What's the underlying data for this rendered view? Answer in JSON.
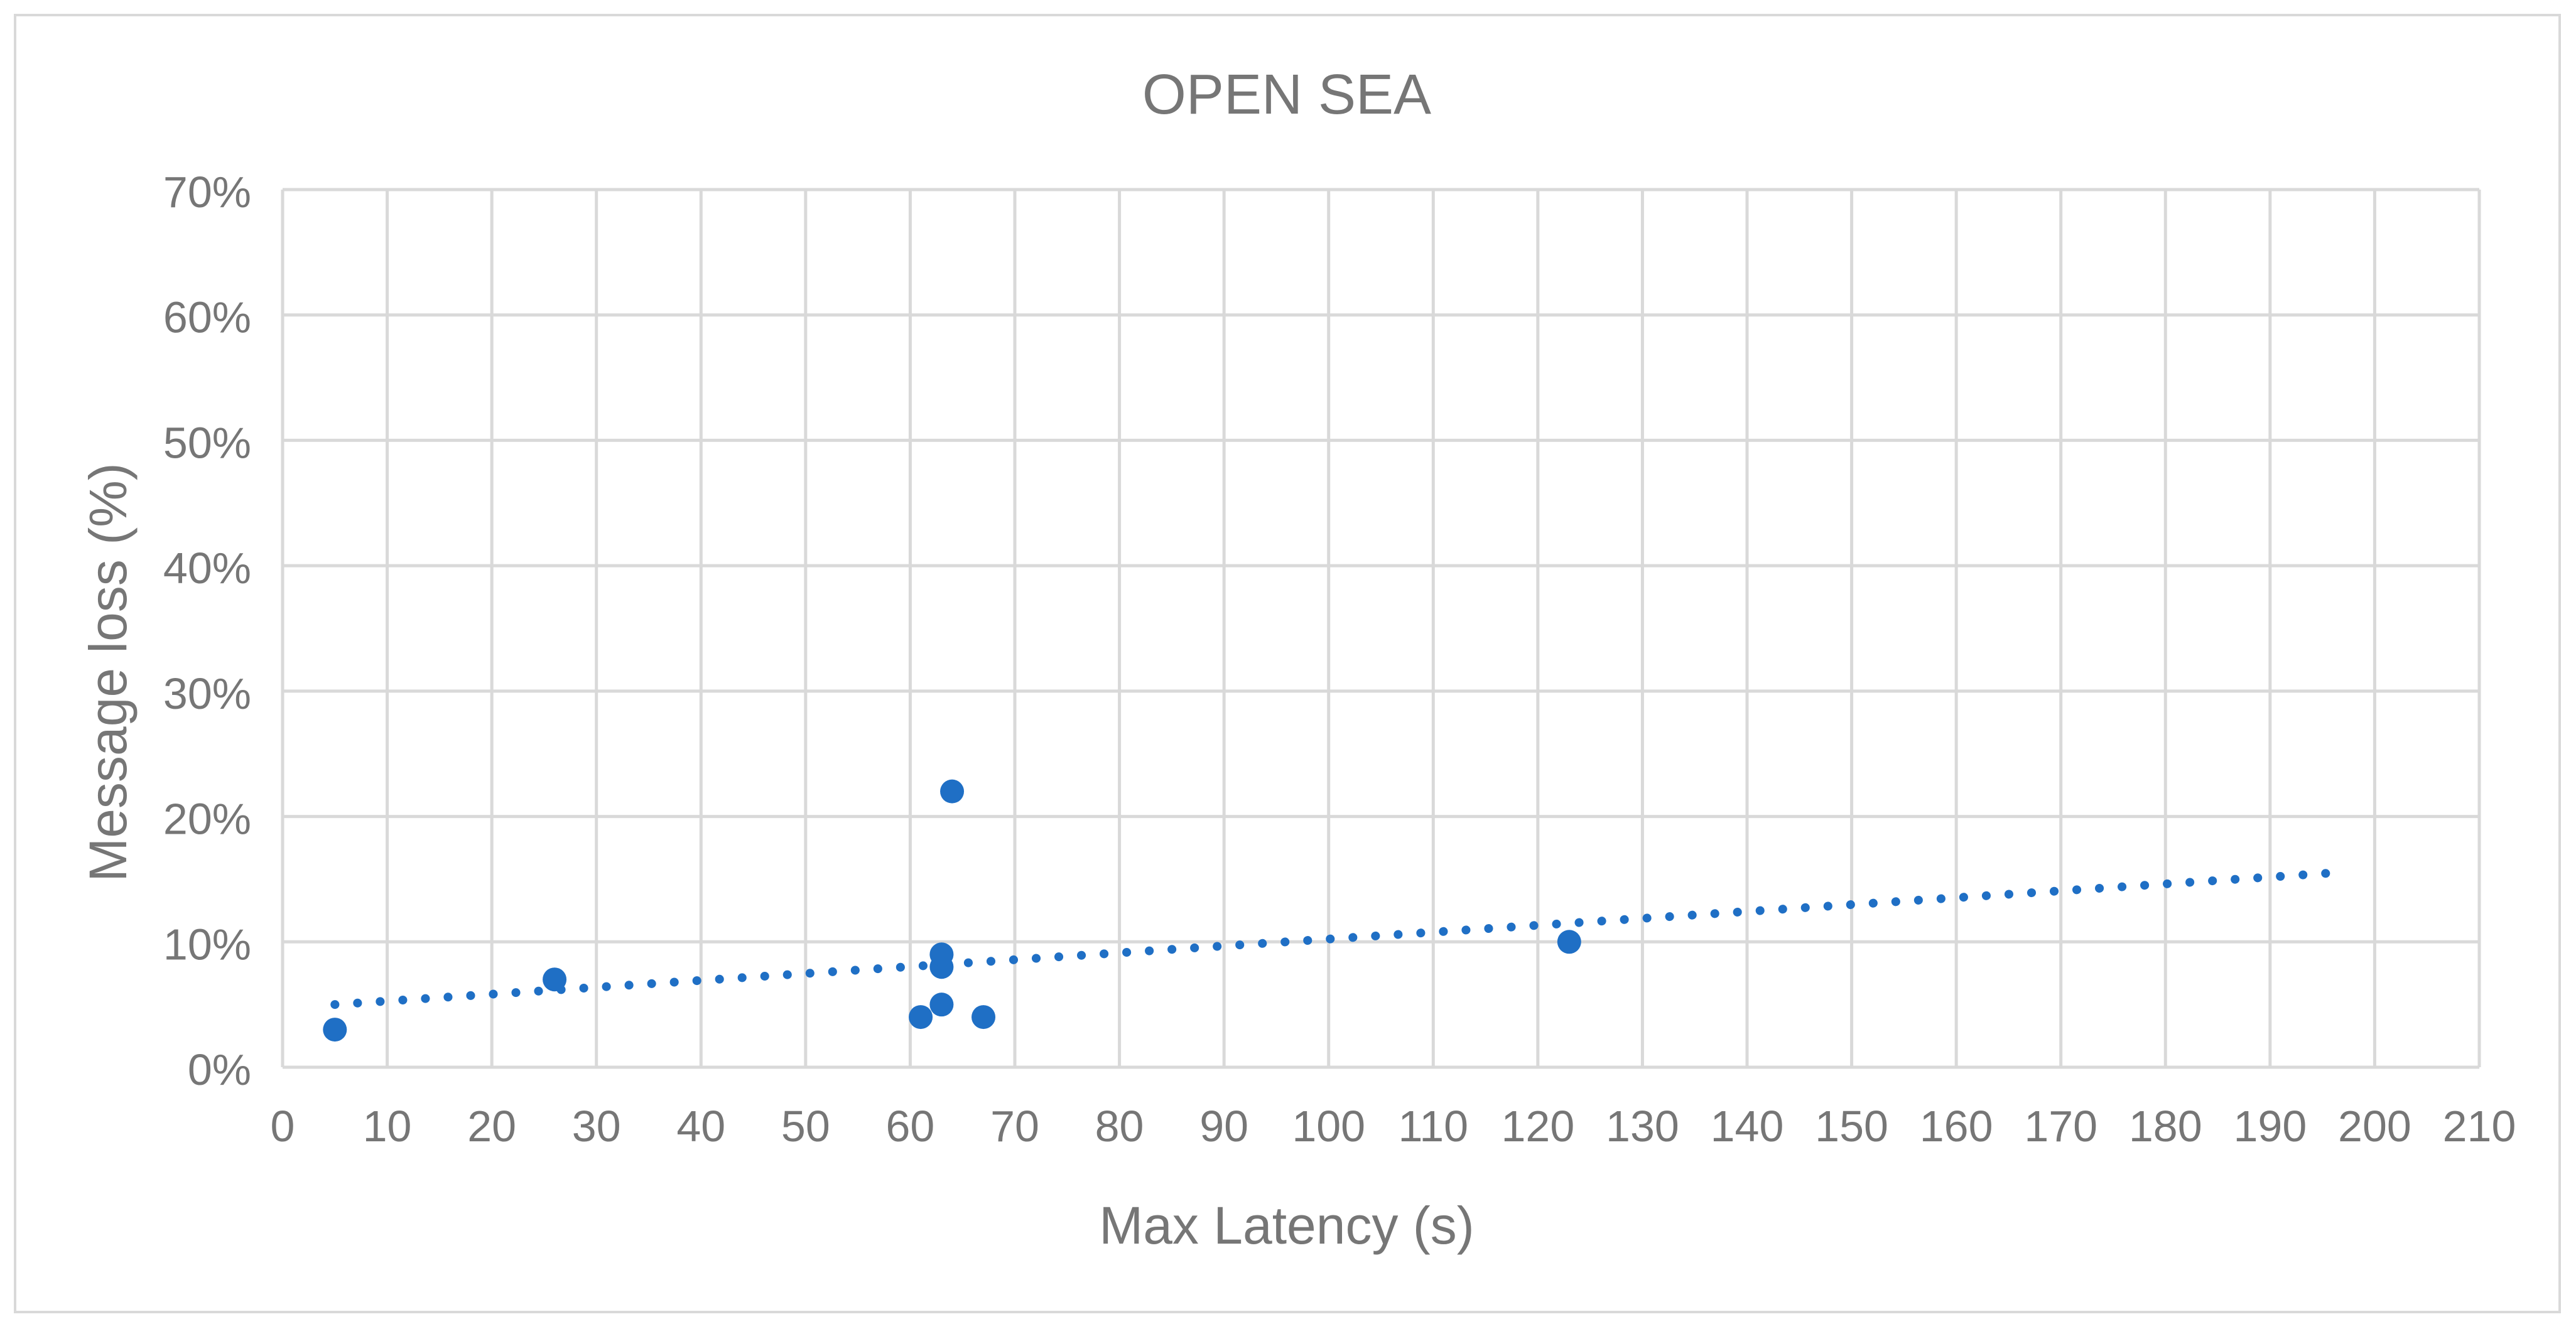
{
  "chart_data": {
    "type": "scatter",
    "title": "OPEN SEA",
    "xlabel": "Max Latency (s)",
    "ylabel": "Message loss (%)",
    "xlim": [
      0,
      210
    ],
    "ylim": [
      0,
      0.7
    ],
    "x_ticks": [
      0,
      10,
      20,
      30,
      40,
      50,
      60,
      70,
      80,
      90,
      100,
      110,
      120,
      130,
      140,
      150,
      160,
      170,
      180,
      190,
      200,
      210
    ],
    "y_ticks": [
      0,
      0.1,
      0.2,
      0.3,
      0.4,
      0.5,
      0.6,
      0.7
    ],
    "x_tick_labels": [
      "0",
      "10",
      "20",
      "30",
      "40",
      "50",
      "60",
      "70",
      "80",
      "90",
      "100",
      "110",
      "120",
      "130",
      "140",
      "150",
      "160",
      "170",
      "180",
      "190",
      "200",
      "210"
    ],
    "y_tick_labels": [
      "0%",
      "10%",
      "20%",
      "30%",
      "40%",
      "50%",
      "60%",
      "70%"
    ],
    "grid": true,
    "legend": "none",
    "series": [
      {
        "color": "#1f6fc5",
        "points": [
          {
            "x": 5,
            "y": 0.03
          },
          {
            "x": 26,
            "y": 0.07
          },
          {
            "x": 61,
            "y": 0.04
          },
          {
            "x": 63,
            "y": 0.05
          },
          {
            "x": 63,
            "y": 0.08
          },
          {
            "x": 63,
            "y": 0.09
          },
          {
            "x": 64,
            "y": 0.22
          },
          {
            "x": 67,
            "y": 0.04
          },
          {
            "x": 123,
            "y": 0.1
          }
        ]
      }
    ],
    "trendline": {
      "type": "linear",
      "style": "dotted",
      "color": "#1f6fc5",
      "points": [
        {
          "x": 5,
          "y": 0.05
        },
        {
          "x": 196,
          "y": 0.155
        }
      ]
    }
  }
}
